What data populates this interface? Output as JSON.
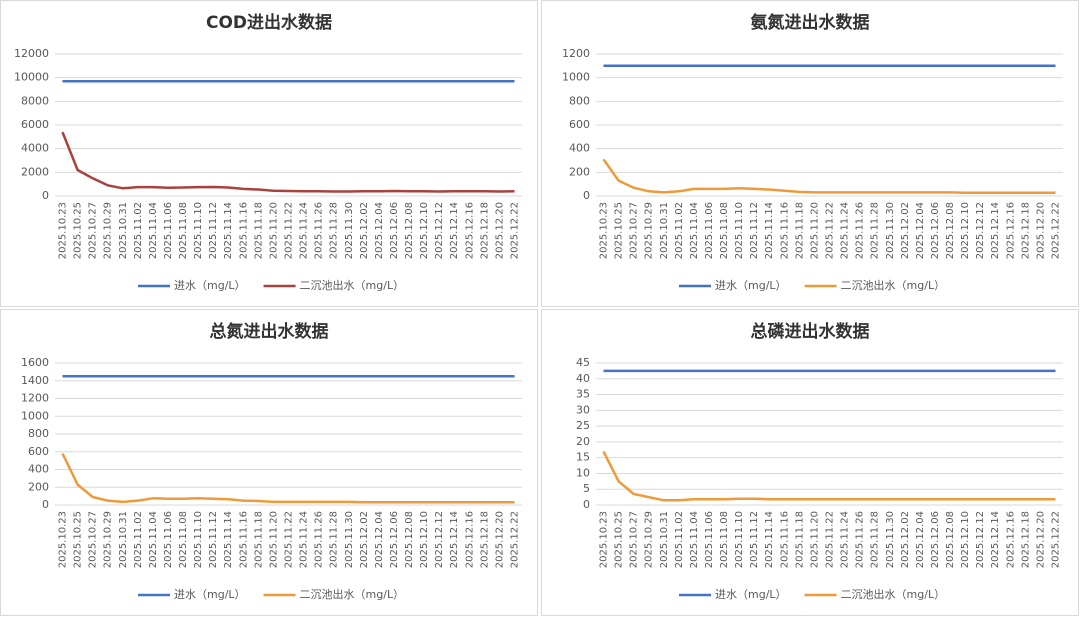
{
  "chart_data": [
    {
      "type": "line",
      "title": "COD进出水数据",
      "categories": [
        "2025.10.23",
        "2025.10.25",
        "2025.10.27",
        "2025.10.29",
        "2025.10.31",
        "2025.11.02",
        "2025.11.04",
        "2025.11.06",
        "2025.11.08",
        "2025.11.10",
        "2025.11.12",
        "2025.11.14",
        "2025.11.16",
        "2025.11.18",
        "2025.11.20",
        "2025.11.22",
        "2025.11.24",
        "2025.11.26",
        "2025.11.28",
        "2025.11.30",
        "2025.12.02",
        "2025.12.04",
        "2025.12.06",
        "2025.12.08",
        "2025.12.10",
        "2025.12.12",
        "2025.12.14",
        "2025.12.16",
        "2025.12.18",
        "2025.12.20",
        "2025.12.22"
      ],
      "series": [
        {
          "name": "进水（mg/L）",
          "color": "#4472c4",
          "values": [
            9700,
            9700,
            9700,
            9700,
            9700,
            9700,
            9700,
            9700,
            9700,
            9700,
            9700,
            9700,
            9700,
            9700,
            9700,
            9700,
            9700,
            9700,
            9700,
            9700,
            9700,
            9700,
            9700,
            9700,
            9700,
            9700,
            9700,
            9700,
            9700,
            9700,
            9700
          ]
        },
        {
          "name": "二沉池出水（mg/L）",
          "color": "#a9423d",
          "values": [
            5400,
            2200,
            1500,
            900,
            650,
            750,
            750,
            700,
            720,
            750,
            760,
            720,
            600,
            550,
            450,
            420,
            400,
            400,
            380,
            380,
            400,
            400,
            420,
            400,
            400,
            380,
            400,
            400,
            400,
            380,
            400
          ]
        }
      ],
      "ylim": [
        0,
        12000
      ],
      "yticks": [
        0,
        2000,
        4000,
        6000,
        8000,
        10000,
        12000
      ],
      "grid": true
    },
    {
      "type": "line",
      "title": "氨氮进出水数据",
      "categories": [
        "2025.10.23",
        "2025.10.25",
        "2025.10.27",
        "2025.10.29",
        "2025.10.31",
        "2025.11.02",
        "2025.11.04",
        "2025.11.06",
        "2025.11.08",
        "2025.11.10",
        "2025.11.12",
        "2025.11.14",
        "2025.11.16",
        "2025.11.18",
        "2025.11.20",
        "2025.11.22",
        "2025.11.24",
        "2025.11.26",
        "2025.11.28",
        "2025.11.30",
        "2025.12.02",
        "2025.12.04",
        "2025.12.06",
        "2025.12.08",
        "2025.12.10",
        "2025.12.12",
        "2025.12.14",
        "2025.12.16",
        "2025.12.18",
        "2025.12.20",
        "2025.12.22"
      ],
      "series": [
        {
          "name": "进水（mg/L）",
          "color": "#4472c4",
          "values": [
            1100,
            1100,
            1100,
            1100,
            1100,
            1100,
            1100,
            1100,
            1100,
            1100,
            1100,
            1100,
            1100,
            1100,
            1100,
            1100,
            1100,
            1100,
            1100,
            1100,
            1100,
            1100,
            1100,
            1100,
            1100,
            1100,
            1100,
            1100,
            1100,
            1100,
            1100
          ]
        },
        {
          "name": "二沉池出水（mg/L）",
          "color": "#ed9b3a",
          "values": [
            310,
            130,
            70,
            40,
            30,
            40,
            60,
            60,
            60,
            65,
            60,
            55,
            45,
            35,
            30,
            30,
            30,
            30,
            30,
            30,
            30,
            30,
            30,
            30,
            28,
            28,
            28,
            28,
            28,
            28,
            28
          ]
        }
      ],
      "ylim": [
        0,
        1200
      ],
      "yticks": [
        0,
        200,
        400,
        600,
        800,
        1000,
        1200
      ],
      "grid": true
    },
    {
      "type": "line",
      "title": "总氮进出水数据",
      "categories": [
        "2025.10.23",
        "2025.10.25",
        "2025.10.27",
        "2025.10.29",
        "2025.10.31",
        "2025.11.02",
        "2025.11.04",
        "2025.11.06",
        "2025.11.08",
        "2025.11.10",
        "2025.11.12",
        "2025.11.14",
        "2025.11.16",
        "2025.11.18",
        "2025.11.20",
        "2025.11.22",
        "2025.11.24",
        "2025.11.26",
        "2025.11.28",
        "2025.11.30",
        "2025.12.02",
        "2025.12.04",
        "2025.12.06",
        "2025.12.08",
        "2025.12.10",
        "2025.12.12",
        "2025.12.14",
        "2025.12.16",
        "2025.12.18",
        "2025.12.20",
        "2025.12.22"
      ],
      "series": [
        {
          "name": "进水（mg/L）",
          "color": "#4472c4",
          "values": [
            1450,
            1450,
            1450,
            1450,
            1450,
            1450,
            1450,
            1450,
            1450,
            1450,
            1450,
            1450,
            1450,
            1450,
            1450,
            1450,
            1450,
            1450,
            1450,
            1450,
            1450,
            1450,
            1450,
            1450,
            1450,
            1450,
            1450,
            1450,
            1450,
            1450,
            1450
          ]
        },
        {
          "name": "二沉池出水（mg/L）",
          "color": "#ed9b3a",
          "values": [
            580,
            230,
            90,
            50,
            35,
            50,
            75,
            70,
            70,
            75,
            70,
            65,
            50,
            45,
            35,
            35,
            35,
            35,
            35,
            35,
            30,
            30,
            30,
            30,
            30,
            30,
            30,
            30,
            30,
            30,
            30
          ]
        }
      ],
      "ylim": [
        0,
        1600
      ],
      "yticks": [
        0,
        200,
        400,
        600,
        800,
        1000,
        1200,
        1400,
        1600
      ],
      "grid": true
    },
    {
      "type": "line",
      "title": "总磷进出水数据",
      "categories": [
        "2025.10.23",
        "2025.10.25",
        "2025.10.27",
        "2025.10.29",
        "2025.10.31",
        "2025.11.02",
        "2025.11.04",
        "2025.11.06",
        "2025.11.08",
        "2025.11.10",
        "2025.11.12",
        "2025.11.14",
        "2025.11.16",
        "2025.11.18",
        "2025.11.20",
        "2025.11.22",
        "2025.11.24",
        "2025.11.26",
        "2025.11.28",
        "2025.11.30",
        "2025.12.02",
        "2025.12.04",
        "2025.12.06",
        "2025.12.08",
        "2025.12.10",
        "2025.12.12",
        "2025.12.14",
        "2025.12.16",
        "2025.12.18",
        "2025.12.20",
        "2025.12.22"
      ],
      "series": [
        {
          "name": "进水（mg/L）",
          "color": "#4472c4",
          "values": [
            42.5,
            42.5,
            42.5,
            42.5,
            42.5,
            42.5,
            42.5,
            42.5,
            42.5,
            42.5,
            42.5,
            42.5,
            42.5,
            42.5,
            42.5,
            42.5,
            42.5,
            42.5,
            42.5,
            42.5,
            42.5,
            42.5,
            42.5,
            42.5,
            42.5,
            42.5,
            42.5,
            42.5,
            42.5,
            42.5,
            42.5
          ]
        },
        {
          "name": "二沉池出水（mg/L）",
          "color": "#ed9b3a",
          "values": [
            17,
            7.5,
            3.5,
            2.5,
            1.5,
            1.5,
            1.8,
            1.8,
            1.8,
            2,
            2,
            1.8,
            1.8,
            1.8,
            1.8,
            1.8,
            1.8,
            1.8,
            1.8,
            1.8,
            1.8,
            1.8,
            1.8,
            1.8,
            1.8,
            1.8,
            1.8,
            1.8,
            1.8,
            1.8,
            1.8
          ]
        }
      ],
      "ylim": [
        0,
        45
      ],
      "yticks": [
        0,
        5,
        10,
        15,
        20,
        25,
        30,
        35,
        40,
        45
      ],
      "grid": true
    }
  ]
}
